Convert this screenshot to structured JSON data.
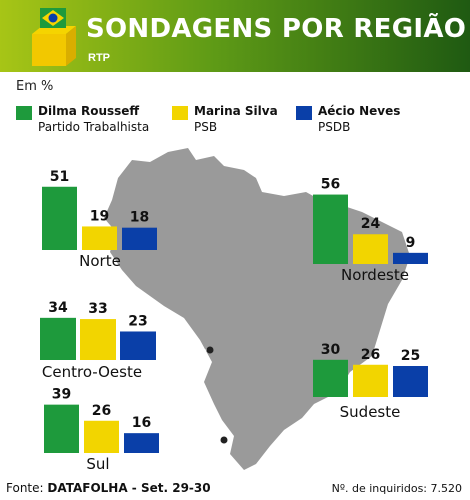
{
  "header": {
    "title": "SONDAGENS POR REGIÃO",
    "source_badge": "RTP"
  },
  "unit_label": "Em %",
  "legend": [
    {
      "name": "Dilma Rousseff",
      "party": "Partido Trabalhista",
      "color": "#1e9a3c"
    },
    {
      "name": "Marina Silva",
      "party": "PSB",
      "color": "#f2d500"
    },
    {
      "name": "Aécio Neves",
      "party": "PSDB",
      "color": "#0a3fa8"
    }
  ],
  "footer": {
    "source_prefix": "Fonte:",
    "source_name": "DATAFOLHA -  Set. 29-30",
    "sample": "Nº. de inquiridos: 7.520"
  },
  "colors": {
    "header_start": "#a7c516",
    "header_end": "#1f5a12",
    "map": "#9a9a9a",
    "dilma": "#1e9a3c",
    "marina": "#f2d500",
    "aecio": "#0a3fa8"
  },
  "chart_data": {
    "type": "bar",
    "unit": "%",
    "series_names": [
      "Dilma Rousseff",
      "Marina Silva",
      "Aécio Neves"
    ],
    "groups": [
      {
        "region": "Norte",
        "values": [
          51,
          19,
          18
        ]
      },
      {
        "region": "Nordeste",
        "values": [
          56,
          24,
          9
        ]
      },
      {
        "region": "Centro-Oeste",
        "values": [
          34,
          33,
          23
        ]
      },
      {
        "region": "Sudeste",
        "values": [
          30,
          26,
          25
        ]
      },
      {
        "region": "Sul",
        "values": [
          39,
          26,
          16
        ]
      }
    ]
  }
}
